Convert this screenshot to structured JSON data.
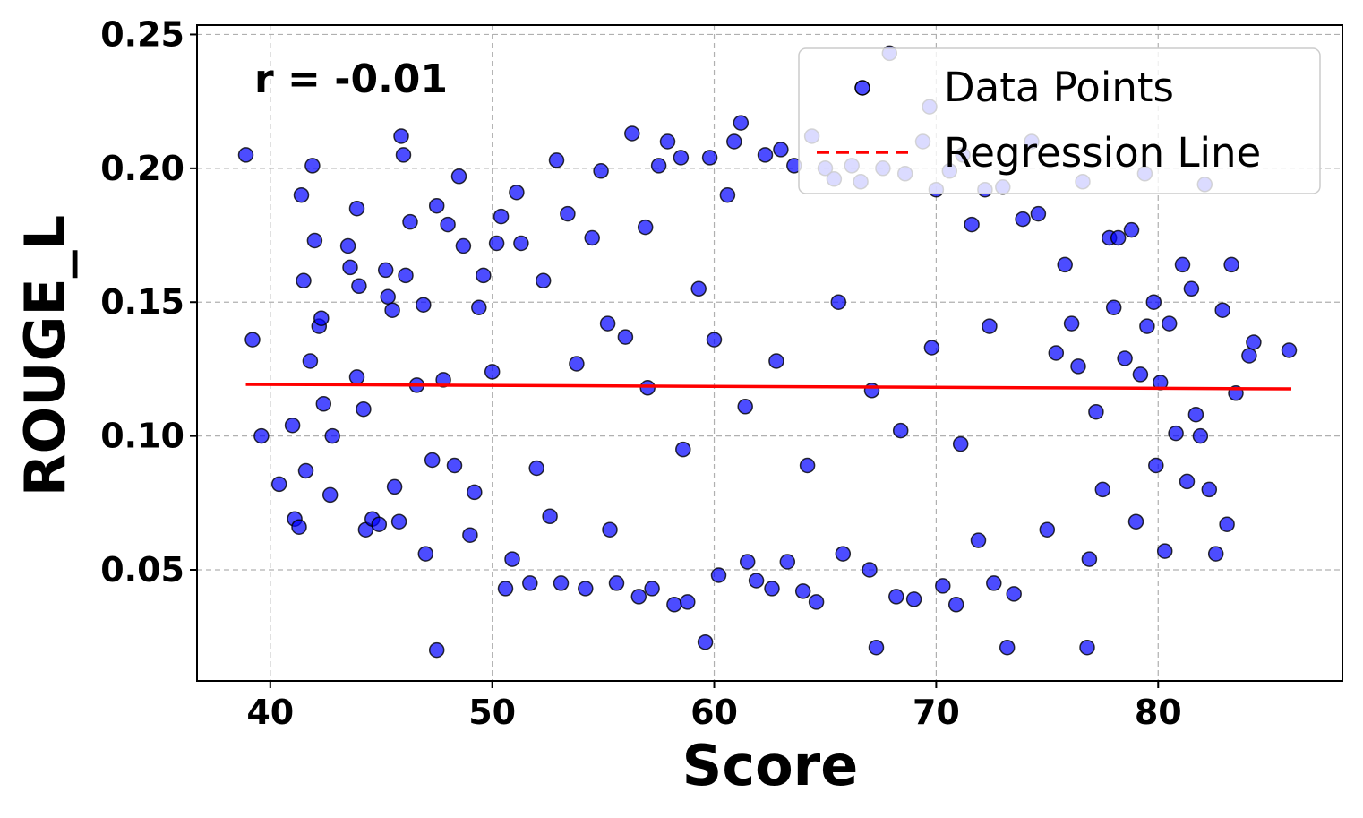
{
  "chart_data": {
    "type": "scatter",
    "xlabel": "Score",
    "ylabel": "ROUGE_L",
    "xlim": [
      36.7,
      88.3
    ],
    "ylim": [
      0.0085,
      0.2535
    ],
    "xticks": [
      40,
      50,
      60,
      70,
      80
    ],
    "yticks": [
      0.05,
      0.1,
      0.15,
      0.2,
      0.25
    ],
    "xtick_labels": [
      "40",
      "50",
      "60",
      "70",
      "80"
    ],
    "ytick_labels": [
      "0.05",
      "0.10",
      "0.15",
      "0.20",
      "0.25"
    ],
    "grid": true,
    "annotation": "r = -0.01",
    "legend": {
      "placement": "top-right",
      "entries": [
        "Data Points",
        "Regression Line"
      ]
    },
    "colors": {
      "points_fill": "#0000ff",
      "points_edge": "#000000",
      "regression": "#ff0000"
    },
    "series": [
      {
        "name": "Data Points",
        "type": "scatter",
        "points": [
          [
            38.9,
            0.205
          ],
          [
            39.2,
            0.136
          ],
          [
            39.6,
            0.1
          ],
          [
            40.4,
            0.082
          ],
          [
            41.0,
            0.104
          ],
          [
            41.1,
            0.069
          ],
          [
            41.3,
            0.066
          ],
          [
            41.4,
            0.19
          ],
          [
            41.5,
            0.158
          ],
          [
            41.6,
            0.087
          ],
          [
            41.8,
            0.128
          ],
          [
            41.9,
            0.201
          ],
          [
            42.0,
            0.173
          ],
          [
            42.2,
            0.141
          ],
          [
            42.3,
            0.144
          ],
          [
            42.4,
            0.112
          ],
          [
            42.7,
            0.078
          ],
          [
            42.8,
            0.1
          ],
          [
            43.5,
            0.171
          ],
          [
            43.6,
            0.163
          ],
          [
            43.9,
            0.185
          ],
          [
            43.9,
            0.122
          ],
          [
            44.0,
            0.156
          ],
          [
            44.2,
            0.11
          ],
          [
            44.3,
            0.065
          ],
          [
            44.6,
            0.069
          ],
          [
            44.9,
            0.067
          ],
          [
            45.2,
            0.162
          ],
          [
            45.3,
            0.152
          ],
          [
            45.5,
            0.147
          ],
          [
            45.6,
            0.081
          ],
          [
            45.8,
            0.068
          ],
          [
            45.9,
            0.212
          ],
          [
            46.0,
            0.205
          ],
          [
            46.1,
            0.16
          ],
          [
            46.3,
            0.18
          ],
          [
            46.6,
            0.119
          ],
          [
            46.9,
            0.149
          ],
          [
            47.0,
            0.056
          ],
          [
            47.3,
            0.091
          ],
          [
            47.5,
            0.02
          ],
          [
            47.5,
            0.186
          ],
          [
            47.8,
            0.121
          ],
          [
            48.0,
            0.179
          ],
          [
            48.3,
            0.089
          ],
          [
            48.5,
            0.197
          ],
          [
            48.7,
            0.171
          ],
          [
            49.0,
            0.063
          ],
          [
            49.2,
            0.079
          ],
          [
            49.4,
            0.148
          ],
          [
            49.6,
            0.16
          ],
          [
            50.0,
            0.124
          ],
          [
            50.2,
            0.172
          ],
          [
            50.4,
            0.182
          ],
          [
            50.6,
            0.043
          ],
          [
            50.9,
            0.054
          ],
          [
            51.1,
            0.191
          ],
          [
            51.3,
            0.172
          ],
          [
            51.7,
            0.045
          ],
          [
            52.0,
            0.088
          ],
          [
            52.3,
            0.158
          ],
          [
            52.6,
            0.07
          ],
          [
            52.9,
            0.203
          ],
          [
            53.1,
            0.045
          ],
          [
            53.4,
            0.183
          ],
          [
            53.8,
            0.127
          ],
          [
            54.2,
            0.043
          ],
          [
            54.5,
            0.174
          ],
          [
            54.9,
            0.199
          ],
          [
            55.3,
            0.065
          ],
          [
            55.6,
            0.045
          ],
          [
            56.0,
            0.137
          ],
          [
            56.3,
            0.213
          ],
          [
            56.6,
            0.04
          ],
          [
            56.9,
            0.178
          ],
          [
            57.2,
            0.043
          ],
          [
            57.5,
            0.201
          ],
          [
            57.9,
            0.21
          ],
          [
            58.2,
            0.037
          ],
          [
            58.5,
            0.204
          ],
          [
            58.8,
            0.038
          ],
          [
            59.3,
            0.155
          ],
          [
            59.6,
            0.023
          ],
          [
            59.8,
            0.204
          ],
          [
            60.2,
            0.048
          ],
          [
            60.6,
            0.19
          ],
          [
            60.9,
            0.21
          ],
          [
            61.2,
            0.217
          ],
          [
            61.5,
            0.053
          ],
          [
            61.9,
            0.046
          ],
          [
            62.3,
            0.205
          ],
          [
            62.6,
            0.043
          ],
          [
            63.0,
            0.207
          ],
          [
            63.3,
            0.053
          ],
          [
            63.6,
            0.201
          ],
          [
            64.0,
            0.042
          ],
          [
            64.4,
            0.212
          ],
          [
            64.6,
            0.038
          ],
          [
            65.0,
            0.2
          ],
          [
            65.4,
            0.196
          ],
          [
            65.8,
            0.056
          ],
          [
            66.2,
            0.201
          ],
          [
            66.6,
            0.195
          ],
          [
            67.0,
            0.05
          ],
          [
            67.3,
            0.021
          ],
          [
            67.6,
            0.2
          ],
          [
            67.9,
            0.243
          ],
          [
            68.2,
            0.04
          ],
          [
            68.6,
            0.198
          ],
          [
            69.0,
            0.039
          ],
          [
            69.4,
            0.21
          ],
          [
            69.7,
            0.223
          ],
          [
            70.0,
            0.192
          ],
          [
            70.3,
            0.044
          ],
          [
            70.6,
            0.199
          ],
          [
            70.9,
            0.037
          ],
          [
            71.2,
            0.205
          ],
          [
            71.6,
            0.179
          ],
          [
            71.9,
            0.061
          ],
          [
            72.2,
            0.192
          ],
          [
            72.6,
            0.045
          ],
          [
            73.0,
            0.193
          ],
          [
            73.2,
            0.021
          ],
          [
            73.5,
            0.041
          ],
          [
            73.9,
            0.181
          ],
          [
            74.3,
            0.21
          ],
          [
            74.6,
            0.183
          ],
          [
            75.0,
            0.065
          ],
          [
            75.4,
            0.131
          ],
          [
            75.8,
            0.164
          ],
          [
            76.1,
            0.142
          ],
          [
            76.4,
            0.126
          ],
          [
            76.6,
            0.195
          ],
          [
            76.8,
            0.021
          ],
          [
            76.9,
            0.054
          ],
          [
            77.2,
            0.109
          ],
          [
            77.5,
            0.08
          ],
          [
            77.8,
            0.174
          ],
          [
            78.0,
            0.148
          ],
          [
            78.2,
            0.174
          ],
          [
            78.5,
            0.129
          ],
          [
            78.8,
            0.177
          ],
          [
            79.0,
            0.068
          ],
          [
            79.2,
            0.123
          ],
          [
            79.4,
            0.198
          ],
          [
            79.5,
            0.141
          ],
          [
            79.8,
            0.15
          ],
          [
            79.9,
            0.089
          ],
          [
            80.1,
            0.12
          ],
          [
            80.3,
            0.057
          ],
          [
            80.5,
            0.142
          ],
          [
            80.8,
            0.101
          ],
          [
            81.1,
            0.164
          ],
          [
            81.3,
            0.083
          ],
          [
            81.5,
            0.155
          ],
          [
            81.7,
            0.108
          ],
          [
            81.9,
            0.1
          ],
          [
            82.1,
            0.194
          ],
          [
            82.3,
            0.08
          ],
          [
            82.9,
            0.147
          ],
          [
            83.1,
            0.067
          ],
          [
            83.3,
            0.164
          ],
          [
            84.1,
            0.13
          ],
          [
            84.3,
            0.135
          ],
          [
            85.9,
            0.132
          ],
          [
            83.5,
            0.116
          ],
          [
            82.6,
            0.056
          ],
          [
            55.2,
            0.142
          ],
          [
            57.0,
            0.118
          ],
          [
            58.6,
            0.095
          ],
          [
            60.0,
            0.136
          ],
          [
            61.4,
            0.111
          ],
          [
            62.8,
            0.128
          ],
          [
            64.2,
            0.089
          ],
          [
            65.6,
            0.15
          ],
          [
            67.1,
            0.117
          ],
          [
            68.4,
            0.102
          ],
          [
            69.8,
            0.133
          ],
          [
            71.1,
            0.097
          ],
          [
            72.4,
            0.141
          ]
        ]
      },
      {
        "name": "Regression Line",
        "type": "line",
        "x": [
          38.9,
          86.0
        ],
        "y": [
          0.1193,
          0.1176
        ]
      }
    ]
  }
}
